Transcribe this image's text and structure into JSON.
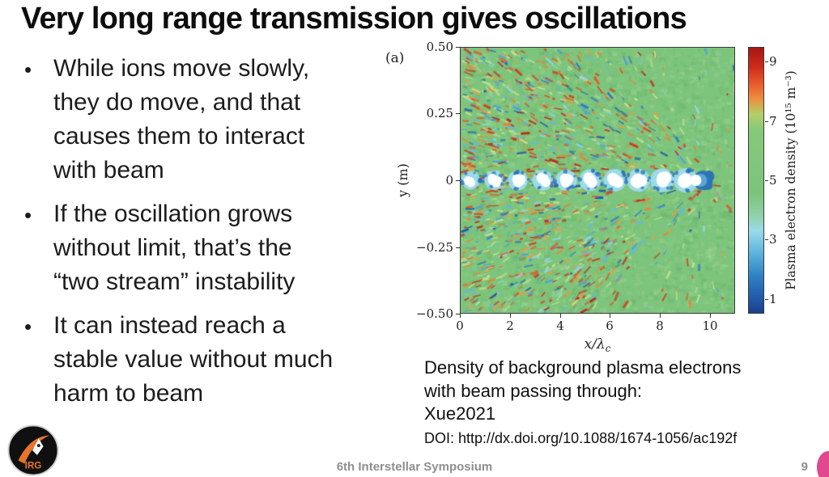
{
  "slide": {
    "title": "Very long range transmission gives oscillations",
    "bullet_char": "•",
    "bullets": [
      "While ions move slowly,\nthey do move, and that\ncauses them to interact\nwith beam",
      "If the oscillation grows\nwithout limit, that’s the\n“two stream” instability",
      "It can instead reach a\nstable value without much\nharm to beam"
    ],
    "caption": {
      "body": "Density of background plasma electrons\nwith beam passing through:\nXue2021",
      "doi": "DOI: http://dx.doi.org/10.1088/1674-1056/ac192f"
    },
    "footer": {
      "conference": "6th Interstellar Symposium",
      "page": "9"
    },
    "logo_text": "IRG"
  },
  "chart_data": {
    "type": "heatmap",
    "panel_label": "(a)",
    "xlabel_main": "x/λ",
    "xlabel_sub": "c",
    "ylabel": "y (m)",
    "x_ticks": [
      "0",
      "2",
      "4",
      "6",
      "8",
      "10"
    ],
    "y_ticks": [
      "0.50",
      "0.25",
      "0",
      "−0.25",
      "−0.50"
    ],
    "xlim": [
      0,
      11
    ],
    "ylim": [
      -0.5,
      0.5
    ],
    "colorbar": {
      "label": "Plasma electron density (10¹⁵ m⁻³)",
      "ticks": [
        "9",
        "7",
        "5",
        "3",
        "1"
      ],
      "range": [
        0.5,
        9.5
      ]
    },
    "colormap": [
      "#a61715",
      "#e4562a",
      "#ee8c3c",
      "#7cc47a",
      "#9bdbe9",
      "#5fb6dd",
      "#2f82c4",
      "#1b3f8f"
    ],
    "field": {
      "base_color": "#7dc47c",
      "beam_blob_x": [
        0.4,
        1.35,
        2.3,
        3.3,
        4.25,
        5.2,
        6.2,
        7.15,
        8.1,
        9.05
      ],
      "beam_end_x": 9.55,
      "description": "Speckled turbulent density field: mostly green (~5×10¹⁵ m⁻³) with red (~9) and blue (~2) filaments forming oblique streaks converging toward the beam axis at the right; saturated white depletion blobs spaced ~1 λc along y=0, terminating in a dark-blue region near x/λc ≈ 9.5."
    }
  }
}
